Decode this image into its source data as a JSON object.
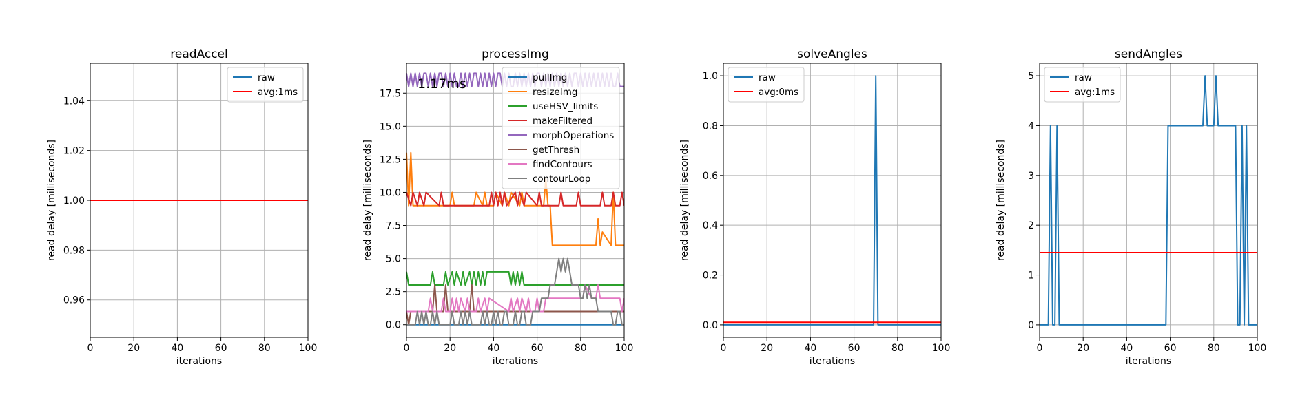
{
  "colors": {
    "raw": "#1f77b4",
    "avg": "#ff0000",
    "grid": "#b0b0b0",
    "tab10": [
      "#1f77b4",
      "#ff7f0e",
      "#2ca02c",
      "#d62728",
      "#9467bd",
      "#8c564b",
      "#e377c2",
      "#7f7f7f"
    ]
  },
  "chart_data": [
    {
      "type": "line",
      "title": "readAccel",
      "xlabel": "iterations",
      "ylabel": "read delay [milliseconds]",
      "xlim": [
        0,
        100
      ],
      "ylim": [
        0.945,
        1.055
      ],
      "xticks": [
        "0",
        "20",
        "40",
        "60",
        "80",
        "100"
      ],
      "yticks": [
        "0.96",
        "0.98",
        "1.00",
        "1.02",
        "1.04"
      ],
      "grid": true,
      "legend_position": "top-right",
      "series": [
        {
          "name": "raw",
          "color": "#1f77b4",
          "x": [],
          "y": []
        },
        {
          "name": "avg:1ms",
          "color": "#ff0000",
          "x": [
            0,
            100
          ],
          "y": [
            1.0,
            1.0
          ]
        }
      ]
    },
    {
      "type": "line",
      "title": "processImg",
      "xlabel": "iterations",
      "ylabel": "read delay [milliseconds]",
      "xlim": [
        0,
        100
      ],
      "ylim": [
        -0.95,
        19.75
      ],
      "xticks": [
        "0",
        "20",
        "40",
        "60",
        "80",
        "100"
      ],
      "yticks": [
        "0.0",
        "2.5",
        "5.0",
        "7.5",
        "10.0",
        "12.5",
        "15.0",
        "17.5"
      ],
      "grid": true,
      "legend_position": "top-right",
      "annotation": "1.17ms",
      "series": [
        {
          "name": "pullImg",
          "color": "#1f77b4",
          "x": [
            0,
            100
          ],
          "y": [
            0,
            0
          ]
        },
        {
          "name": "resizeImg",
          "color": "#ff7f0e",
          "x": [
            0,
            1,
            2,
            3,
            4,
            20,
            21,
            22,
            31,
            32,
            35,
            36,
            37,
            40,
            41,
            44,
            45,
            47,
            48,
            52,
            53,
            54,
            63,
            64,
            65,
            66,
            67,
            68,
            87,
            88,
            89,
            90,
            94,
            95,
            96,
            100
          ],
          "y": [
            13,
            9,
            13,
            9,
            9,
            9,
            10,
            9,
            9,
            10,
            9,
            10,
            9,
            9,
            10,
            9,
            10,
            9,
            10,
            9,
            10,
            9,
            9,
            11,
            9,
            9,
            6,
            6,
            6,
            8,
            6,
            7,
            6,
            10,
            6,
            6
          ]
        },
        {
          "name": "useHSV_limits",
          "color": "#2ca02c",
          "x": [
            0,
            1,
            11,
            12,
            13,
            17,
            18,
            19,
            21,
            22,
            23,
            25,
            26,
            27,
            29,
            30,
            31,
            32,
            33,
            34,
            35,
            36,
            37,
            38,
            47,
            48,
            49,
            50,
            51,
            52,
            53,
            54,
            100
          ],
          "y": [
            4,
            3,
            3,
            4,
            3,
            3,
            4,
            3,
            4,
            3,
            4,
            3,
            4,
            3,
            4,
            3,
            4,
            3,
            4,
            3,
            4,
            3,
            4,
            4,
            4,
            3,
            4,
            3,
            4,
            3,
            4,
            3,
            3
          ]
        },
        {
          "name": "makeFiltered",
          "color": "#d62728",
          "x": [
            0,
            2,
            3,
            5,
            6,
            8,
            9,
            15,
            16,
            17,
            38,
            39,
            40,
            41,
            42,
            43,
            44,
            45,
            46,
            50,
            51,
            52,
            54,
            55,
            60,
            61,
            62,
            70,
            71,
            72,
            78,
            79,
            80,
            89,
            90,
            91,
            94,
            95,
            96,
            98,
            99,
            100
          ],
          "y": [
            10,
            9,
            10,
            9,
            10,
            9,
            10,
            9,
            10,
            9,
            9,
            10,
            9,
            10,
            9,
            10,
            9,
            10,
            9,
            10,
            9,
            10,
            9,
            10,
            9,
            10,
            9,
            9,
            10,
            9,
            9,
            10,
            9,
            9,
            10,
            9,
            9,
            10,
            9,
            9,
            10,
            9
          ]
        },
        {
          "name": "morphOperations",
          "color": "#9467bd",
          "x": [
            0,
            1,
            2,
            3,
            4,
            5,
            6,
            7,
            8,
            9,
            10,
            11,
            12,
            13,
            14,
            15,
            16,
            17,
            18,
            19,
            20,
            21,
            22,
            23,
            24,
            25,
            26,
            27,
            28,
            29,
            30,
            31,
            32,
            33,
            34,
            35,
            36,
            37,
            38,
            39,
            40,
            41,
            42,
            43,
            44,
            45,
            46,
            47,
            48,
            49,
            50,
            51,
            52,
            53,
            54,
            55,
            56,
            57,
            58,
            59,
            60,
            61,
            62,
            63,
            64,
            65,
            66,
            67,
            68,
            69,
            70,
            71,
            72,
            73,
            74,
            75,
            76,
            77,
            78,
            79,
            80,
            81,
            82,
            83,
            84,
            85,
            86,
            87,
            88,
            89,
            90,
            91,
            92,
            93,
            94,
            95,
            96,
            97,
            98,
            99,
            100
          ],
          "y": [
            19,
            18,
            19,
            18,
            19,
            18,
            19,
            18,
            19,
            19,
            18,
            19,
            18,
            19,
            18,
            19,
            19,
            18,
            19,
            18,
            19,
            18,
            19,
            18,
            18,
            19,
            18,
            19,
            18,
            19,
            18,
            19,
            19,
            18,
            19,
            18,
            19,
            18,
            19,
            18,
            19,
            18,
            19,
            19,
            18,
            19,
            18,
            19,
            18,
            18,
            19,
            18,
            19,
            18,
            19,
            18,
            19,
            18,
            19,
            18,
            19,
            19,
            18,
            19,
            18,
            19,
            18,
            19,
            18,
            19,
            18,
            19,
            18,
            19,
            18,
            19,
            18,
            19,
            19,
            18,
            19,
            18,
            19,
            18,
            19,
            18,
            19,
            18,
            19,
            18,
            19,
            18,
            19,
            18,
            19,
            18,
            18,
            19,
            18,
            18,
            18
          ]
        },
        {
          "name": "getThresh",
          "color": "#8c564b",
          "x": [
            0,
            1,
            2,
            3,
            4,
            5,
            12,
            13,
            14,
            17,
            18,
            19,
            29,
            30,
            31,
            40,
            41,
            42,
            100
          ],
          "y": [
            1,
            0,
            1,
            1,
            1,
            1,
            1,
            3,
            1,
            1,
            3,
            1,
            1,
            3,
            1,
            1,
            1,
            1,
            1
          ]
        },
        {
          "name": "findContours",
          "color": "#e377c2",
          "x": [
            0,
            10,
            11,
            12,
            16,
            17,
            18,
            20,
            21,
            22,
            23,
            24,
            25,
            27,
            28,
            29,
            32,
            33,
            34,
            36,
            37,
            38,
            47,
            48,
            49,
            51,
            52,
            53,
            55,
            56,
            57,
            59,
            60,
            61,
            63,
            64,
            65,
            70,
            81,
            82,
            85,
            86,
            87,
            88,
            89,
            98,
            99,
            100
          ],
          "y": [
            1,
            1,
            2,
            1,
            1,
            2,
            1,
            1,
            2,
            1,
            2,
            1,
            2,
            1,
            2,
            1,
            1,
            2,
            1,
            2,
            1,
            2,
            1,
            2,
            1,
            2,
            1,
            2,
            1,
            2,
            1,
            1,
            2,
            1,
            1,
            2,
            2,
            2,
            2,
            3,
            2,
            2,
            2,
            3,
            2,
            2,
            1,
            2
          ]
        },
        {
          "name": "contourLoop",
          "color": "#7f7f7f",
          "x": [
            0,
            1,
            2,
            3,
            4,
            5,
            6,
            7,
            8,
            9,
            10,
            11,
            12,
            13,
            14,
            15,
            16,
            17,
            18,
            19,
            20,
            21,
            22,
            23,
            24,
            25,
            26,
            27,
            28,
            29,
            30,
            31,
            32,
            33,
            34,
            35,
            36,
            37,
            38,
            39,
            40,
            41,
            42,
            43,
            44,
            45,
            46,
            47,
            48,
            49,
            50,
            51,
            52,
            53,
            54,
            55,
            56,
            57,
            58,
            59,
            60,
            61,
            62,
            63,
            64,
            65,
            66,
            67,
            68,
            69,
            70,
            71,
            72,
            73,
            74,
            75,
            76,
            77,
            78,
            79,
            80,
            81,
            82,
            83,
            84,
            85,
            86,
            87,
            88,
            89,
            90,
            91,
            92,
            93,
            94,
            95,
            96,
            97,
            98,
            99,
            100
          ],
          "y": [
            0,
            0,
            0,
            0,
            0,
            1,
            0,
            1,
            0,
            1,
            0,
            0,
            1,
            0,
            1,
            0,
            0,
            0,
            0,
            0,
            0,
            1,
            0,
            0,
            0,
            1,
            0,
            1,
            0,
            1,
            0,
            0,
            0,
            0,
            0,
            1,
            0,
            1,
            0,
            0,
            1,
            0,
            1,
            0,
            0,
            1,
            1,
            0,
            0,
            0,
            1,
            0,
            0,
            1,
            1,
            0,
            0,
            0,
            1,
            1,
            1,
            1,
            2,
            2,
            2,
            2,
            3,
            3,
            3,
            4,
            5,
            4,
            5,
            4,
            5,
            4,
            3,
            3,
            3,
            3,
            2,
            2,
            3,
            2,
            3,
            2,
            2,
            2,
            1,
            1,
            1,
            1,
            1,
            1,
            1,
            0,
            0,
            1,
            1,
            0,
            0
          ]
        }
      ]
    },
    {
      "type": "line",
      "title": "solveAngles",
      "xlabel": "iterations",
      "ylabel": "read delay [milliseconds]",
      "xlim": [
        0,
        100
      ],
      "ylim": [
        -0.05,
        1.05
      ],
      "xticks": [
        "0",
        "20",
        "40",
        "60",
        "80",
        "100"
      ],
      "yticks": [
        "0.0",
        "0.2",
        "0.4",
        "0.6",
        "0.8",
        "1.0"
      ],
      "grid": true,
      "legend_position": "top-left",
      "series": [
        {
          "name": "raw",
          "color": "#1f77b4",
          "x": [
            0,
            69,
            70,
            71,
            100
          ],
          "y": [
            0,
            0,
            1,
            0,
            0
          ]
        },
        {
          "name": "avg:0ms",
          "color": "#ff0000",
          "x": [
            0,
            100
          ],
          "y": [
            0.01,
            0.01
          ]
        }
      ]
    },
    {
      "type": "line",
      "title": "sendAngles",
      "xlabel": "iterations",
      "ylabel": "read delay [milliseconds]",
      "xlim": [
        0,
        100
      ],
      "ylim": [
        -0.25,
        5.25
      ],
      "xticks": [
        "0",
        "20",
        "40",
        "60",
        "80",
        "100"
      ],
      "yticks": [
        "0",
        "1",
        "2",
        "3",
        "4",
        "5"
      ],
      "grid": true,
      "legend_position": "top-left",
      "series": [
        {
          "name": "raw",
          "color": "#1f77b4",
          "x": [
            0,
            4,
            5,
            6,
            7,
            8,
            9,
            58,
            59,
            75,
            76,
            77,
            78,
            80,
            81,
            82,
            88,
            89,
            90,
            91,
            92,
            93,
            94,
            95,
            96,
            100
          ],
          "y": [
            0,
            0,
            4,
            0,
            0,
            4,
            0,
            0,
            4,
            4,
            5,
            4,
            4,
            4,
            5,
            4,
            4,
            4,
            4,
            0,
            0,
            4,
            0,
            4,
            0,
            0
          ]
        },
        {
          "name": "avg:1ms",
          "color": "#ff0000",
          "x": [
            0,
            100
          ],
          "y": [
            1.45,
            1.45
          ]
        }
      ]
    }
  ]
}
